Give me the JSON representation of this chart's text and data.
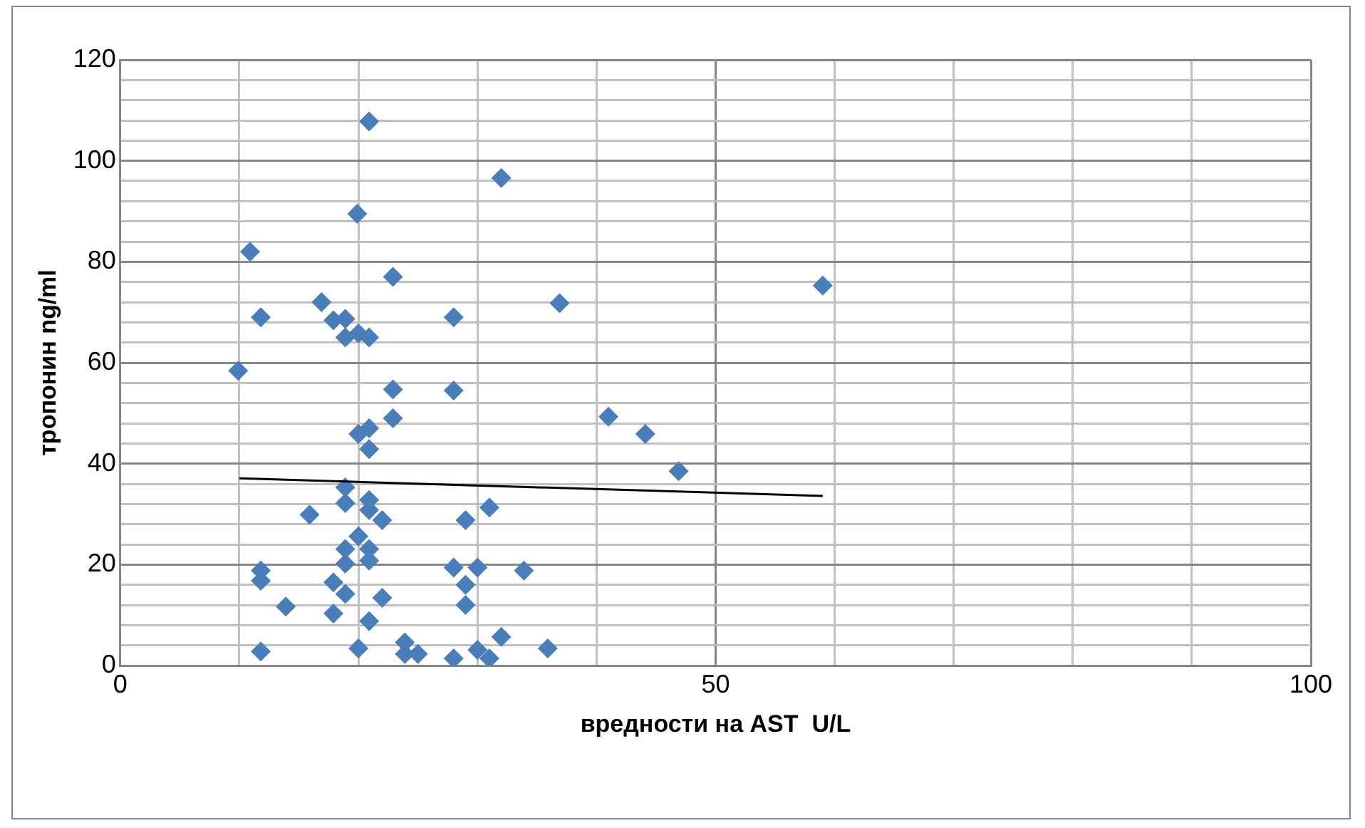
{
  "chart_data": {
    "type": "scatter",
    "xlabel": "вредности на AST  U/L",
    "ylabel": "тропонин ng/ml",
    "marker": "diamond",
    "grid": true,
    "legend": false,
    "xlim": [
      0,
      100
    ],
    "ylim": [
      0,
      120
    ],
    "xticks": [
      0,
      {
        "value": 10,
        "label": null
      },
      {
        "value": 20,
        "label": null
      },
      {
        "value": 30,
        "label": null
      },
      {
        "value": 40,
        "label": null
      },
      50,
      {
        "value": 60,
        "label": null
      },
      {
        "value": 70,
        "label": null
      },
      {
        "value": 80,
        "label": null
      },
      {
        "value": 90,
        "label": null
      },
      100
    ],
    "yticks": [
      0,
      {
        "value": 4,
        "label": null
      },
      {
        "value": 8,
        "label": null
      },
      {
        "value": 12,
        "label": null
      },
      {
        "value": 16,
        "label": null
      },
      20,
      {
        "value": 24,
        "label": null
      },
      {
        "value": 28,
        "label": null
      },
      {
        "value": 32,
        "label": null
      },
      {
        "value": 36,
        "label": null
      },
      40,
      {
        "value": 44,
        "label": null
      },
      {
        "value": 48,
        "label": null
      },
      {
        "value": 52,
        "label": null
      },
      {
        "value": 56,
        "label": null
      },
      60,
      {
        "value": 64,
        "label": null
      },
      {
        "value": 68,
        "label": null
      },
      {
        "value": 72,
        "label": null
      },
      {
        "value": 76,
        "label": null
      },
      80,
      {
        "value": 84,
        "label": null
      },
      {
        "value": 88,
        "label": null
      },
      {
        "value": 92,
        "label": null
      },
      {
        "value": 96,
        "label": null
      },
      100,
      {
        "value": 104,
        "label": null
      },
      {
        "value": 108,
        "label": null
      },
      {
        "value": 112,
        "label": null
      },
      {
        "value": 116,
        "label": null
      },
      120
    ],
    "series": [
      {
        "color": "#4a7ebb",
        "x": [
          20.9,
          32,
          19.9,
          10.9,
          22.9,
          59,
          36.9,
          16.9,
          11.8,
          28,
          17.9,
          18.9,
          18.9,
          20,
          20.9,
          9.9,
          22.9,
          28,
          41,
          44.1,
          46.9,
          22.9,
          20,
          20.9,
          20.9,
          18.9,
          18.9,
          20.9,
          20.9,
          22,
          15.9,
          29,
          31,
          20,
          18.9,
          20.9,
          18.9,
          20.9,
          11.8,
          11.8,
          28,
          30,
          33.9,
          17.9,
          18.9,
          29,
          22,
          13.9,
          17.9,
          29,
          20.9,
          11.8,
          20,
          23.9,
          23.9,
          25,
          28,
          31,
          30,
          32,
          35.9
        ],
        "values": [
          107.8,
          96.6,
          89.5,
          82,
          77,
          75.3,
          71.8,
          72,
          69,
          69,
          68.4,
          68.7,
          65,
          65.8,
          65,
          58.4,
          54.7,
          54.5,
          49.3,
          45.9,
          38.5,
          49,
          45.9,
          47,
          42.9,
          35.3,
          32.2,
          32.8,
          30.8,
          28.8,
          29.9,
          28.8,
          31.3,
          25.6,
          23.1,
          23.1,
          20.2,
          20.8,
          18.8,
          16.8,
          19.4,
          19.4,
          18.8,
          16.5,
          14.2,
          16,
          13.4,
          11.7,
          10.3,
          12,
          8.8,
          2.8,
          3.4,
          4.6,
          2.3,
          2.3,
          1.4,
          1.4,
          3.1,
          5.7,
          3.4
        ]
      },
      {
        "type": "line",
        "color": "#000000",
        "marker": "none",
        "x": [
          10,
          59
        ],
        "values": [
          37.1,
          33.6
        ]
      }
    ]
  }
}
